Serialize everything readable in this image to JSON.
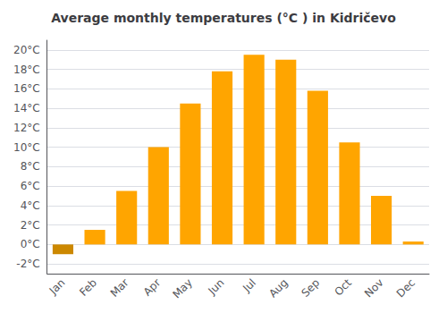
{
  "chart_data": {
    "type": "bar",
    "title": "Average monthly temperatures (°C ) in Kidričevo",
    "categories": [
      "Jan",
      "Feb",
      "Mar",
      "Apr",
      "May",
      "Jun",
      "Jul",
      "Aug",
      "Sep",
      "Oct",
      "Nov",
      "Dec"
    ],
    "values": [
      -1.0,
      1.5,
      5.5,
      10.0,
      14.5,
      17.8,
      19.5,
      19.0,
      15.8,
      10.5,
      5.0,
      0.3
    ],
    "colors": [
      "#CC8800",
      "#FFA500",
      "#FFA500",
      "#FFA500",
      "#FFA500",
      "#FFA500",
      "#FFA500",
      "#FFA500",
      "#FFA500",
      "#FFA500",
      "#FFA500",
      "#FFA500"
    ],
    "ylim": [
      -3,
      21
    ],
    "yticks": [
      {
        "value": -2,
        "label": "-2°C"
      },
      {
        "value": 0,
        "label": "0°C"
      },
      {
        "value": 2,
        "label": "2°C"
      },
      {
        "value": 4,
        "label": "4°C"
      },
      {
        "value": 6,
        "label": "6°C"
      },
      {
        "value": 8,
        "label": "8°C"
      },
      {
        "value": 10,
        "label": "10°C"
      },
      {
        "value": 12,
        "label": "12°C"
      },
      {
        "value": 14,
        "label": "14°C"
      },
      {
        "value": 16,
        "label": "16°C"
      },
      {
        "value": 18,
        "label": "18°C"
      },
      {
        "value": 20,
        "label": "20°C"
      }
    ],
    "grid": true
  }
}
